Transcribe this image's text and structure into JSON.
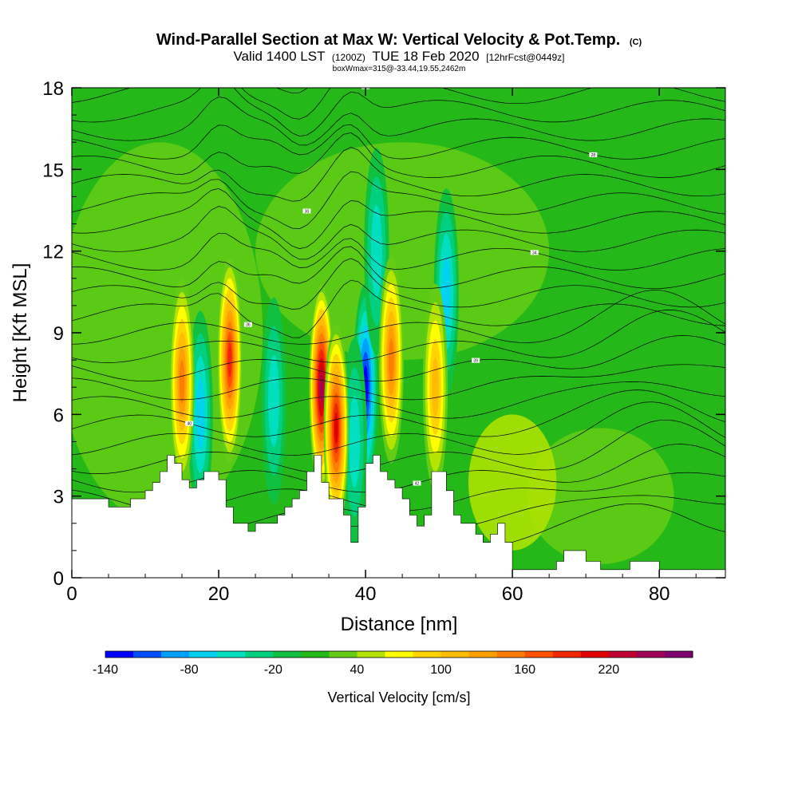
{
  "title": {
    "main": "Wind-Parallel Section at Max W: Vertical Velocity & Pot.Temp.",
    "copyright": "(C)",
    "valid_prefix": "Valid 1400 LST",
    "valid_utc": "(1200Z)",
    "valid_date": "TUE 18 Feb 2020",
    "fcst": "[12hrFcst@0449z]",
    "boxinfo": "boxWmax=315@-33.44,19.55,2462m"
  },
  "chart_data": {
    "type": "heatmap",
    "xlabel": "Distance [nm]",
    "ylabel": "Height [Kft MSL]",
    "xlim": [
      0,
      89
    ],
    "ylim": [
      0,
      18
    ],
    "x_ticks": [
      0,
      20,
      40,
      60,
      80
    ],
    "y_ticks": [
      0,
      3,
      6,
      9,
      12,
      15,
      18
    ],
    "colorbar": {
      "label": "Vertical Velocity [cm/s]",
      "levels": [
        -140,
        -120,
        -100,
        -80,
        -60,
        -40,
        -20,
        0,
        20,
        40,
        60,
        80,
        100,
        120,
        140,
        160,
        180,
        200,
        220,
        240,
        260
      ],
      "tick_labels": [
        "-140",
        "-80",
        "-20",
        "40",
        "100",
        "160",
        "220"
      ],
      "tick_values": [
        -140,
        -80,
        -20,
        40,
        100,
        160,
        220
      ],
      "colors": [
        "#0000ff",
        "#0050ff",
        "#00a0ff",
        "#00d2f0",
        "#00e0c0",
        "#00d080",
        "#10c040",
        "#24b818",
        "#64cc14",
        "#b4e400",
        "#ffff00",
        "#ffd400",
        "#ffbc00",
        "#ffa000",
        "#ff7c00",
        "#ff5000",
        "#f02800",
        "#e00000",
        "#c00030",
        "#a00058",
        "#800070"
      ]
    },
    "terrain_kft": [
      [
        0,
        2.9
      ],
      [
        5,
        2.9
      ],
      [
        5,
        2.6
      ],
      [
        8,
        2.6
      ],
      [
        8,
        2.9
      ],
      [
        10,
        2.9
      ],
      [
        10,
        3.2
      ],
      [
        11,
        3.2
      ],
      [
        11,
        3.5
      ],
      [
        12,
        3.5
      ],
      [
        12,
        3.9
      ],
      [
        13,
        3.9
      ],
      [
        13,
        4.5
      ],
      [
        14,
        4.5
      ],
      [
        14,
        4.2
      ],
      [
        15,
        4.2
      ],
      [
        15,
        3.6
      ],
      [
        16,
        3.6
      ],
      [
        16,
        3.3
      ],
      [
        17,
        3.3
      ],
      [
        17,
        3.6
      ],
      [
        18,
        3.6
      ],
      [
        18,
        3.9
      ],
      [
        20,
        3.9
      ],
      [
        20,
        3.6
      ],
      [
        21,
        3.6
      ],
      [
        21,
        2.6
      ],
      [
        22,
        2.6
      ],
      [
        22,
        2.0
      ],
      [
        24,
        2.0
      ],
      [
        24,
        1.7
      ],
      [
        25,
        1.7
      ],
      [
        25,
        2.0
      ],
      [
        28,
        2.0
      ],
      [
        28,
        2.3
      ],
      [
        29,
        2.3
      ],
      [
        29,
        2.6
      ],
      [
        30,
        2.6
      ],
      [
        30,
        2.9
      ],
      [
        31,
        2.9
      ],
      [
        31,
        3.2
      ],
      [
        32,
        3.2
      ],
      [
        32,
        3.9
      ],
      [
        33,
        3.9
      ],
      [
        33,
        4.5
      ],
      [
        34,
        4.5
      ],
      [
        34,
        3.5
      ],
      [
        35,
        3.5
      ],
      [
        35,
        2.9
      ],
      [
        37,
        2.9
      ],
      [
        37,
        2.3
      ],
      [
        38,
        2.3
      ],
      [
        38,
        1.3
      ],
      [
        39,
        1.3
      ],
      [
        39,
        2.6
      ],
      [
        40,
        2.6
      ],
      [
        40,
        4.2
      ],
      [
        41,
        4.2
      ],
      [
        41,
        4.5
      ],
      [
        42,
        4.5
      ],
      [
        42,
        3.9
      ],
      [
        43,
        3.9
      ],
      [
        43,
        3.6
      ],
      [
        44,
        3.6
      ],
      [
        44,
        3.3
      ],
      [
        45,
        3.3
      ],
      [
        45,
        2.9
      ],
      [
        46,
        2.9
      ],
      [
        46,
        2.3
      ],
      [
        47,
        2.3
      ],
      [
        47,
        1.9
      ],
      [
        48,
        1.9
      ],
      [
        48,
        2.3
      ],
      [
        49,
        2.3
      ],
      [
        49,
        3.9
      ],
      [
        51,
        3.9
      ],
      [
        51,
        3.2
      ],
      [
        52,
        3.2
      ],
      [
        52,
        2.3
      ],
      [
        53,
        2.3
      ],
      [
        53,
        2.0
      ],
      [
        55,
        2.0
      ],
      [
        55,
        1.6
      ],
      [
        56,
        1.6
      ],
      [
        56,
        1.3
      ],
      [
        57,
        1.3
      ],
      [
        57,
        1.6
      ],
      [
        58,
        1.6
      ],
      [
        58,
        2.0
      ],
      [
        59,
        2.0
      ],
      [
        59,
        1.3
      ],
      [
        60,
        1.3
      ],
      [
        60,
        0.3
      ],
      [
        66,
        0.3
      ],
      [
        66,
        0.6
      ],
      [
        67,
        0.6
      ],
      [
        67,
        1.0
      ],
      [
        70,
        1.0
      ],
      [
        70,
        0.6
      ],
      [
        72,
        0.6
      ],
      [
        72,
        0.3
      ],
      [
        76,
        0.3
      ],
      [
        76,
        0.6
      ],
      [
        80,
        0.6
      ],
      [
        80,
        0.3
      ],
      [
        89,
        0.3
      ]
    ],
    "updrafts": [
      {
        "x": 15.0,
        "z": 7.2,
        "value": 130
      },
      {
        "x": 21.5,
        "z": 8.0,
        "value": 180
      },
      {
        "x": 34.0,
        "z": 7.0,
        "value": 230
      },
      {
        "x": 36.0,
        "z": 5.5,
        "value": 200
      },
      {
        "x": 43.5,
        "z": 8.0,
        "value": 130
      },
      {
        "x": 49.5,
        "z": 7.0,
        "value": 90
      }
    ],
    "downdrafts": [
      {
        "x": 17.5,
        "z": 6.0,
        "value": -70
      },
      {
        "x": 27.5,
        "z": 6.5,
        "value": -50
      },
      {
        "x": 40.0,
        "z": 7.0,
        "value": -140
      },
      {
        "x": 38.5,
        "z": 5.0,
        "value": -60
      },
      {
        "x": 51.0,
        "z": 10.5,
        "value": -70
      },
      {
        "x": 41.5,
        "z": 12.0,
        "value": -60
      }
    ],
    "isentrope_labels": [
      "48",
      "42",
      "40",
      "39",
      "36",
      "34",
      "30",
      "28"
    ]
  }
}
